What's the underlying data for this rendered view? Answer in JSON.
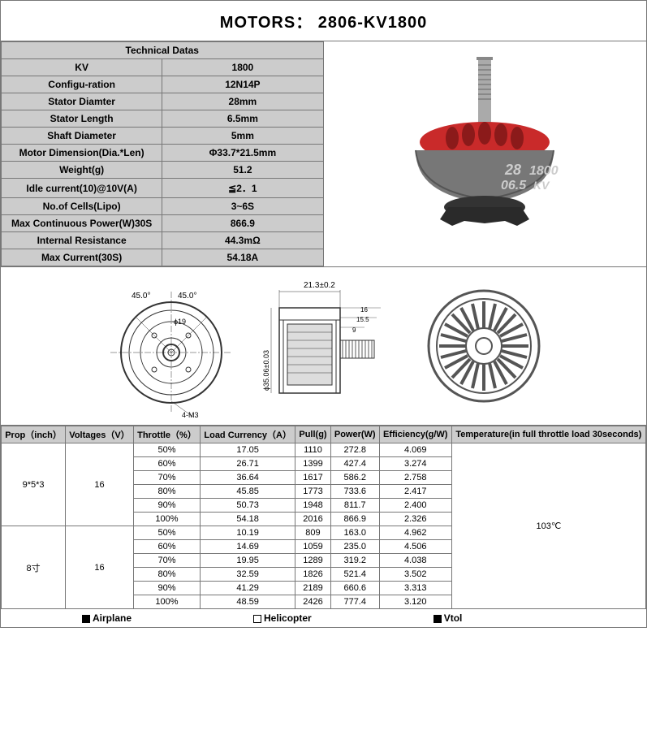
{
  "title": "MOTORS： 2806-KV1800",
  "spec_header": "Technical Datas",
  "specs": [
    {
      "label": "KV",
      "value": "1800"
    },
    {
      "label": "Configu-ration",
      "value": "12N14P"
    },
    {
      "label": "Stator Diamter",
      "value": "28mm"
    },
    {
      "label": "Stator Length",
      "value": "6.5mm"
    },
    {
      "label": "Shaft Diameter",
      "value": "5mm"
    },
    {
      "label": "Motor Dimension(Dia.*Len)",
      "value": "Φ33.7*21.5mm"
    },
    {
      "label": "Weight(g)",
      "value": "51.2"
    },
    {
      "label": "Idle current(10)@10V(A)",
      "value": "≦2．1"
    },
    {
      "label": "No.of Cells(Lipo)",
      "value": "3~6S"
    },
    {
      "label": "Max Continuous Power(W)30S",
      "value": "866.9"
    },
    {
      "label": "Internal Resistance",
      "value": "44.3mΩ"
    },
    {
      "label": "Max Current(30S)",
      "value": "54.18A"
    }
  ],
  "motor_colors": {
    "top": "#c92a2a",
    "body": "#888",
    "shaft": "#999",
    "base": "#444"
  },
  "diagram_labels": {
    "angle1": "45.0°",
    "angle2": "45.0°",
    "dia_inner": "ϕ19",
    "height": "21.3±0.2",
    "dim16": "16",
    "dim155": "15.5",
    "dim9": "9",
    "dia_outer": "ϕ35.06±0.03",
    "m3": "4-M3"
  },
  "perf_headers": [
    "Prop（inch）",
    "Voltages（V）",
    "Throttle（%）",
    "Load Currency（A）",
    "Pull(g)",
    "Power(W)",
    "Efficiency(g/W)",
    "Temperature(in full throttle load 30seconds)"
  ],
  "perf_groups": [
    {
      "prop": "9*5*3",
      "voltage": "16",
      "rows": [
        {
          "throttle": "50%",
          "current": "17.05",
          "pull": "1110",
          "power": "272.8",
          "eff": "4.069"
        },
        {
          "throttle": "60%",
          "current": "26.71",
          "pull": "1399",
          "power": "427.4",
          "eff": "3.274"
        },
        {
          "throttle": "70%",
          "current": "36.64",
          "pull": "1617",
          "power": "586.2",
          "eff": "2.758"
        },
        {
          "throttle": "80%",
          "current": "45.85",
          "pull": "1773",
          "power": "733.6",
          "eff": "2.417"
        },
        {
          "throttle": "90%",
          "current": "50.73",
          "pull": "1948",
          "power": "811.7",
          "eff": "2.400"
        },
        {
          "throttle": "100%",
          "current": "54.18",
          "pull": "2016",
          "power": "866.9",
          "eff": "2.326"
        }
      ]
    },
    {
      "prop": "8寸",
      "voltage": "16",
      "rows": [
        {
          "throttle": "50%",
          "current": "10.19",
          "pull": "809",
          "power": "163.0",
          "eff": "4.962"
        },
        {
          "throttle": "60%",
          "current": "14.69",
          "pull": "1059",
          "power": "235.0",
          "eff": "4.506"
        },
        {
          "throttle": "70%",
          "current": "19.95",
          "pull": "1289",
          "power": "319.2",
          "eff": "4.038"
        },
        {
          "throttle": "80%",
          "current": "32.59",
          "pull": "1826",
          "power": "521.4",
          "eff": "3.502"
        },
        {
          "throttle": "90%",
          "current": "41.29",
          "pull": "2189",
          "power": "660.6",
          "eff": "3.313"
        },
        {
          "throttle": "100%",
          "current": "48.59",
          "pull": "2426",
          "power": "777.4",
          "eff": "3.120"
        }
      ]
    }
  ],
  "temperature": "103℃",
  "footer": {
    "airplane": "Airplane",
    "helicopter": "Helicopter",
    "vtol": "Vtol"
  }
}
